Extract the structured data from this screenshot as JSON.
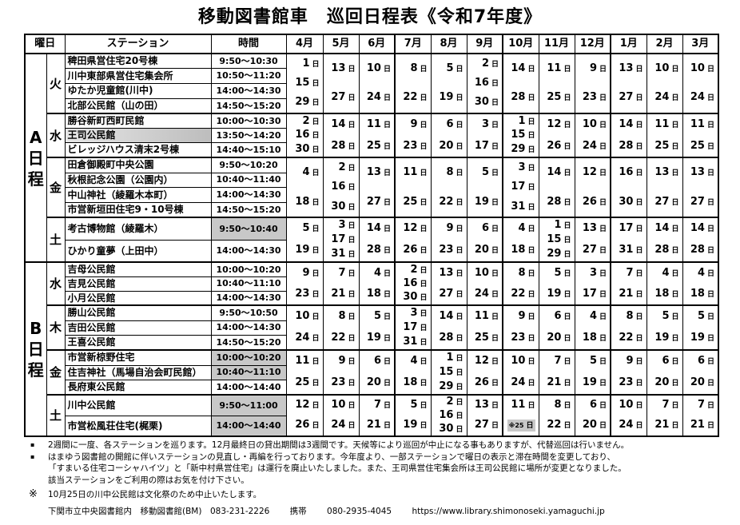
{
  "title": "移動図書館車　巡回日程表《令和7年度》",
  "headers": {
    "weekday": "曜日",
    "station": "ステーション",
    "time": "時間",
    "months": [
      "4月",
      "5月",
      "6月",
      "7月",
      "8月",
      "9月",
      "10月",
      "11月",
      "12月",
      "1月",
      "2月",
      "3月"
    ]
  },
  "day_unit": "日",
  "sections": [
    {
      "label": "A日程",
      "days": [
        {
          "day": "火",
          "stations": [
            {
              "name": "稗田県営住宅20号棟",
              "time": "9:50～10:30"
            },
            {
              "name": "川中東部県営住宅集会所",
              "time": "10:50～11:20"
            },
            {
              "name": "ゆたか児童館(川中)",
              "time": "14:00～14:30"
            },
            {
              "name": "北部公民館（山の田）",
              "time": "14:50～15:20"
            }
          ],
          "months": [
            [
              "1",
              "15",
              "29"
            ],
            [
              "13",
              "27"
            ],
            [
              "10",
              "24"
            ],
            [
              "8",
              "22"
            ],
            [
              "5",
              "19"
            ],
            [
              "2",
              "16",
              "30"
            ],
            [
              "14",
              "28"
            ],
            [
              "11",
              "25"
            ],
            [
              "9",
              "23"
            ],
            [
              "13",
              "27"
            ],
            [
              "10",
              "24"
            ],
            [
              "10",
              "24"
            ]
          ]
        },
        {
          "day": "水",
          "stations": [
            {
              "name": "勝谷新町西町民館",
              "time": "10:00～10:30"
            },
            {
              "name": "王司公民館",
              "time": "13:50～14:20",
              "name_shaded": true
            },
            {
              "name": "ビレッジハウス清末2号棟",
              "time": "14:40～15:10"
            }
          ],
          "months": [
            [
              "2",
              "16",
              "30"
            ],
            [
              "14",
              "28"
            ],
            [
              "11",
              "25"
            ],
            [
              "9",
              "23"
            ],
            [
              "6",
              "20"
            ],
            [
              "3",
              "17"
            ],
            [
              "1",
              "15",
              "29"
            ],
            [
              "12",
              "26"
            ],
            [
              "10",
              "24"
            ],
            [
              "14",
              "28"
            ],
            [
              "11",
              "25"
            ],
            [
              "11",
              "25"
            ]
          ]
        },
        {
          "day": "金",
          "stations": [
            {
              "name": "田倉御殿町中央公園",
              "time": "9:50～10:20"
            },
            {
              "name": "秋根記念公園（公園内）",
              "time": "10:40～11:40"
            },
            {
              "name": "中山神社（綾羅木本町）",
              "time": "14:00～14:30"
            },
            {
              "name": "市営新垣田住宅9・10号棟",
              "time": "14:50～15:20"
            }
          ],
          "months": [
            [
              "4",
              "18"
            ],
            [
              "2",
              "16",
              "30"
            ],
            [
              "13",
              "27"
            ],
            [
              "11",
              "25"
            ],
            [
              "8",
              "22"
            ],
            [
              "5",
              "19"
            ],
            [
              "3",
              "17",
              "31"
            ],
            [
              "14",
              "28"
            ],
            [
              "12",
              "26"
            ],
            [
              "16",
              "30"
            ],
            [
              "13",
              "27"
            ],
            [
              "13",
              "27"
            ]
          ]
        },
        {
          "day": "土",
          "stations": [
            {
              "name": "考古博物館（綾羅木）",
              "time": "9:50～10:40",
              "time_shaded": true
            },
            {
              "name": "ひかり童夢（上田中）",
              "time": "14:00～14:30"
            }
          ],
          "months": [
            [
              "5",
              "19"
            ],
            [
              "3",
              "17",
              "31"
            ],
            [
              "14",
              "28"
            ],
            [
              "12",
              "26"
            ],
            [
              "9",
              "23"
            ],
            [
              "6",
              "20"
            ],
            [
              "4",
              "18"
            ],
            [
              "1",
              "15",
              "29"
            ],
            [
              "13",
              "27"
            ],
            [
              "17",
              "31"
            ],
            [
              "14",
              "28"
            ],
            [
              "14",
              "28"
            ]
          ]
        }
      ]
    },
    {
      "label": "B日程",
      "days": [
        {
          "day": "水",
          "stations": [
            {
              "name": "吉母公民館",
              "time": "10:00～10:20"
            },
            {
              "name": "吉見公民館",
              "time": "10:40～11:10"
            },
            {
              "name": "小月公民館",
              "time": "14:00～14:30"
            }
          ],
          "months": [
            [
              "9",
              "23"
            ],
            [
              "7",
              "21"
            ],
            [
              "4",
              "18"
            ],
            [
              "2",
              "16",
              "30"
            ],
            [
              "13",
              "27"
            ],
            [
              "10",
              "24"
            ],
            [
              "8",
              "22"
            ],
            [
              "5",
              "19"
            ],
            [
              "3",
              "17"
            ],
            [
              "7",
              "21"
            ],
            [
              "4",
              "18"
            ],
            [
              "4",
              "18"
            ]
          ]
        },
        {
          "day": "木",
          "stations": [
            {
              "name": "勝山公民館",
              "time": "9:50～10:50"
            },
            {
              "name": "吉田公民館",
              "time": "14:00～14:30"
            },
            {
              "name": "王喜公民館",
              "time": "14:50～15:20"
            }
          ],
          "months": [
            [
              "10",
              "24"
            ],
            [
              "8",
              "22"
            ],
            [
              "5",
              "19"
            ],
            [
              "3",
              "17",
              "31"
            ],
            [
              "14",
              "28"
            ],
            [
              "11",
              "25"
            ],
            [
              "9",
              "23"
            ],
            [
              "6",
              "20"
            ],
            [
              "4",
              "18"
            ],
            [
              "8",
              "22"
            ],
            [
              "5",
              "19"
            ],
            [
              "5",
              "19"
            ]
          ]
        },
        {
          "day": "金",
          "stations": [
            {
              "name": "市営新椋野住宅",
              "time": "10:00～10:20",
              "time_shaded": true
            },
            {
              "name": "住吉神社（馬場自治会町民館）",
              "time": "10:40～11:10",
              "time_shaded": true
            },
            {
              "name": "長府東公民館",
              "time": "14:00～14:40"
            }
          ],
          "months": [
            [
              "11",
              "25"
            ],
            [
              "9",
              "23"
            ],
            [
              "6",
              "20"
            ],
            [
              "4",
              "18"
            ],
            [
              "1",
              "15",
              "29"
            ],
            [
              "12",
              "26"
            ],
            [
              "10",
              "24"
            ],
            [
              "7",
              "21"
            ],
            [
              "5",
              "19"
            ],
            [
              "9",
              "23"
            ],
            [
              "6",
              "20"
            ],
            [
              "6",
              "20"
            ]
          ]
        },
        {
          "day": "土",
          "stations": [
            {
              "name": "川中公民館",
              "time": "9:50～11:00",
              "time_shaded": true
            },
            {
              "name": "市営松風荘住宅(梶栗)",
              "time": "14:00～14:40",
              "time_shaded": true
            }
          ],
          "months": [
            [
              "12",
              "26"
            ],
            [
              "10",
              "24"
            ],
            [
              "7",
              "21"
            ],
            [
              "5",
              "19"
            ],
            [
              "2",
              "16",
              "30"
            ],
            [
              "13",
              "27"
            ],
            [
              "11",
              "※25"
            ],
            [
              "8",
              "22"
            ],
            [
              "6",
              "20"
            ],
            [
              "10",
              "24"
            ],
            [
              "7",
              "21"
            ],
            [
              "7",
              "21"
            ]
          ]
        }
      ]
    }
  ],
  "notes": [
    {
      "mark": "▪",
      "lines": [
        "2週間に一度、各ステーションを巡ります。12月最終日の貸出期間は3週間です。天候等により巡回が中止になる事もありますが、代替巡回は行いません。"
      ]
    },
    {
      "mark": "▪",
      "lines": [
        "はまゆう図書館の開館に伴いステーションの見直し・再編を行っております。今年度より、一部ステーションで曜日の表示と滞在時間を変更しており、",
        "「すまいる住宅コーシャハイツ」と「新中村県営住宅」は運行を廃止いたしました。また、王司県営住宅集会所は王司公民館に場所が変更となりました。",
        "該当ステーションをご利用の際はお気を付け下さい。"
      ]
    },
    {
      "mark": "※",
      "lines": [
        "10月25日の川中公民館は文化祭のため中止いたします。"
      ]
    }
  ],
  "footer": {
    "org": "下関市立中央図書館内　移動図書館(BM)　083-231-2226",
    "mobile_label": "携帯",
    "mobile": "080-2935-4045",
    "url": "https://www.library.shimonoseki.yamaguchi.jp"
  }
}
